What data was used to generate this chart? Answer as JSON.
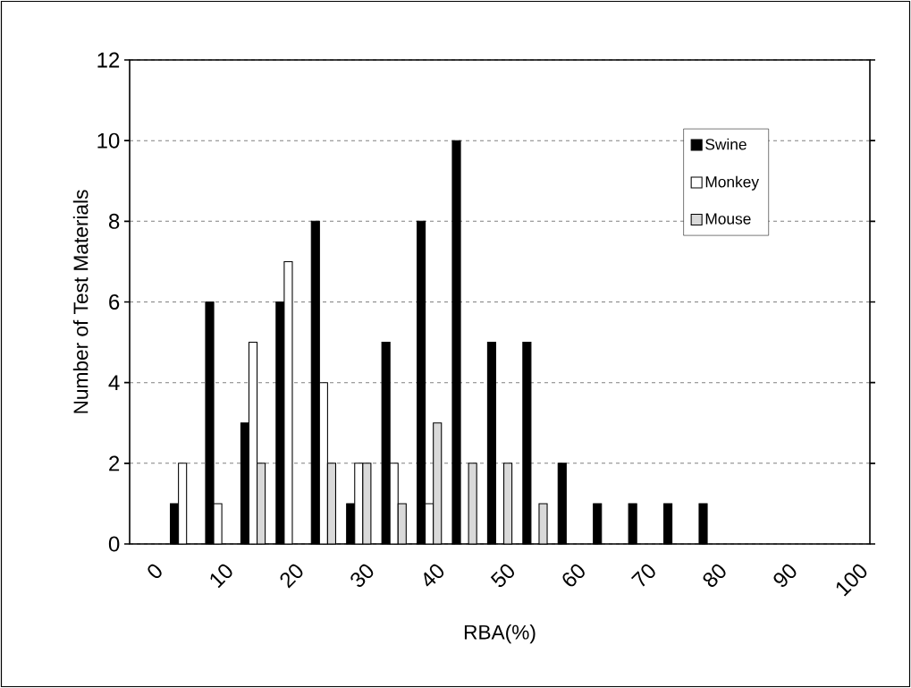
{
  "chart_data": {
    "type": "bar",
    "xlabel": "RBA(%)",
    "ylabel": "Number of Test Materials",
    "categories": [
      "0",
      null,
      "10",
      null,
      "20",
      null,
      "30",
      null,
      "40",
      null,
      "50",
      null,
      "60",
      null,
      "70",
      null,
      "80",
      null,
      "90",
      null,
      "100"
    ],
    "series": [
      {
        "name": "Swine",
        "color": "#000000",
        "values": [
          0,
          1,
          6,
          3,
          6,
          8,
          1,
          5,
          8,
          10,
          5,
          5,
          2,
          1,
          1,
          1,
          1,
          0,
          0,
          0,
          0
        ]
      },
      {
        "name": "Monkey",
        "color": "#ffffff",
        "values": [
          0,
          2,
          1,
          5,
          7,
          4,
          2,
          2,
          1,
          0,
          0,
          0,
          0,
          0,
          0,
          0,
          0,
          0,
          0,
          0,
          0
        ]
      },
      {
        "name": "Mouse",
        "color": "#d9d9d9",
        "values": [
          0,
          0,
          0,
          2,
          0,
          2,
          2,
          1,
          3,
          2,
          2,
          1,
          0,
          0,
          0,
          0,
          0,
          0,
          0,
          0,
          0
        ]
      }
    ],
    "ylim": [
      0,
      12
    ],
    "yticks": [
      0,
      2,
      4,
      6,
      8,
      10,
      12
    ],
    "grid": "y",
    "legend": "top right"
  }
}
